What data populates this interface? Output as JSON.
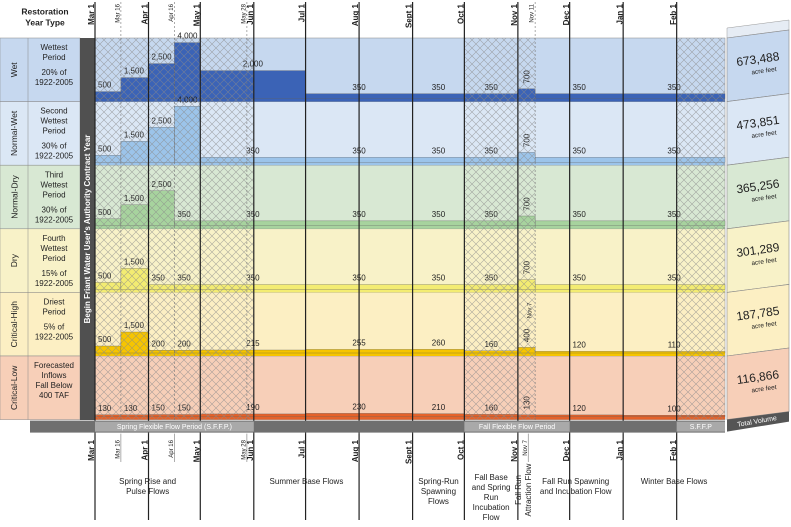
{
  "header": {
    "title_lines": [
      "Restoration",
      "Year Type"
    ]
  },
  "contract_label": "Begin Friant Water User's Authority Contract Year",
  "top_ticks": [
    "Mar 1",
    "Mar 16",
    "Apr 1",
    "Apr 16",
    "May 1",
    "May 28",
    "Jun 1",
    "Jul 1",
    "Aug 1",
    "Sept 1",
    "Oct 1",
    "Nov 1",
    "Nov 11",
    "Dec 1",
    "Jan 1",
    "Feb 1"
  ],
  "bottom_ticks": [
    "Mar 1",
    "Mar 16",
    "Apr 1",
    "Apr 16",
    "May 1",
    "May 28",
    "Jun 1",
    "Jul 1",
    "Aug 1",
    "Sept 1",
    "Oct 1",
    "Nov 1",
    "Nov 7",
    "Dec 1",
    "Jan 1",
    "Feb 1"
  ],
  "rows": [
    {
      "type": "Wet",
      "description": [
        "Wettest",
        "Period"
      ],
      "share": [
        "20% of",
        "1922-2005"
      ],
      "flows": [
        500,
        {
          "value": 1500,
          "label": "1,500"
        },
        {
          "value": 2500,
          "label": "2,500"
        },
        {
          "value": 4000,
          "label": "4,000"
        },
        {
          "value": 2000,
          "label": "2,000"
        },
        350,
        350,
        350,
        700,
        350,
        350
      ],
      "total": "673,488",
      "unit": "acre feet",
      "background": "#c6d8ef",
      "color": "#3b63b6"
    },
    {
      "type": "Normal-Wet",
      "description": [
        "Second",
        "Wettest",
        "Period"
      ],
      "share": [
        "30% of",
        "1922-2005"
      ],
      "flows": [
        500,
        {
          "value": 1500,
          "label": "1,500"
        },
        {
          "value": 2500,
          "label": "2,500"
        },
        {
          "value": 4000,
          "label": "4,000"
        },
        350,
        350,
        350,
        350,
        700,
        350,
        350
      ],
      "total": "473,851",
      "unit": "acre feet",
      "background": "#dbe7f5",
      "color": "#9cc4ea"
    },
    {
      "type": "Normal-Dry",
      "description": [
        "Third",
        "Wettest",
        "Period"
      ],
      "share": [
        "30% of",
        "1922-2005"
      ],
      "flows": [
        500,
        {
          "value": 1500,
          "label": "1,500"
        },
        {
          "value": 2500,
          "label": "2,500"
        },
        350,
        350,
        350,
        350,
        350,
        700,
        350,
        350
      ],
      "total": "365,256",
      "unit": "acre feet",
      "background": "#d8e8d3",
      "color": "#a7d39e"
    },
    {
      "type": "Dry",
      "description": [
        "Fourth",
        "Wettest",
        "Period"
      ],
      "share": [
        "15% of",
        "1922-2005"
      ],
      "flows": [
        500,
        {
          "value": 1500,
          "label": "1,500"
        },
        350,
        350,
        350,
        350,
        350,
        350,
        700,
        350,
        350
      ],
      "total": "301,289",
      "unit": "acre feet",
      "background": "#f8f2c8",
      "color": "#f3ec72"
    },
    {
      "type": "Critical-High",
      "description": [
        "Driest",
        "Period"
      ],
      "share": [
        "5% of",
        "1922-2005"
      ],
      "flows": [
        500,
        {
          "value": 1500,
          "label": "1,500"
        },
        200,
        200,
        215,
        255,
        260,
        160,
        400,
        120,
        110
      ],
      "note": "Nov 7",
      "total": "187,785",
      "unit": "acre feet",
      "background": "#fcefc3",
      "color": "#f6c500"
    },
    {
      "type": "Critical-Low",
      "description": [
        "Forecasted",
        "Inflows",
        "Fall Below",
        "400 TAF"
      ],
      "share": [],
      "flows": [
        130,
        130,
        150,
        150,
        190,
        230,
        210,
        160,
        130,
        120,
        100
      ],
      "total": "116,866",
      "unit": "acre feet",
      "background": "#f7cfb8",
      "color": "#e4622a"
    }
  ],
  "periods": [
    "Spring Flexible Flow Period (S.F.F.P.)",
    "Fall Flexible Flow Period",
    "S.F.F.P"
  ],
  "total_label": "Total Volume",
  "flow_names": [
    {
      "lines": [
        "Spring Rise and",
        "Pulse Flows"
      ]
    },
    {
      "lines": [
        "Summer Base Flows"
      ]
    },
    {
      "lines": [
        "Spring-Run",
        "Spawning",
        "Flows"
      ]
    },
    {
      "lines": [
        "Fall Base",
        "and Spring",
        "Run",
        "Incubation",
        "Flow"
      ]
    },
    {
      "lines": [
        "Fall Run",
        "Attraction Flow"
      ]
    },
    {
      "lines": [
        "Fall Run Spawning",
        "and Incubation Flow"
      ]
    },
    {
      "lines": [
        "Winter Base Flows"
      ]
    }
  ]
}
